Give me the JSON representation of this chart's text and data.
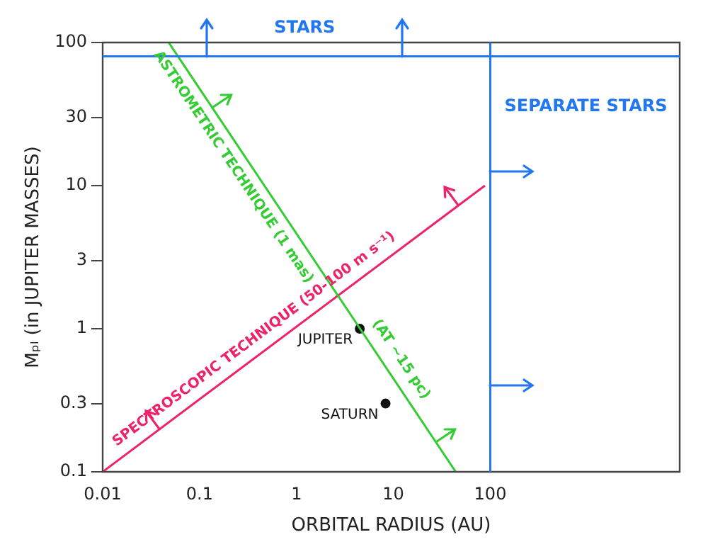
{
  "chart_data": {
    "type": "line",
    "xlabel": "ORBITAL RADIUS (AU)",
    "ylabel": "Mₚₗ (in JUPITER MASSES)",
    "log": "xy",
    "xlim": [
      0.01,
      9000
    ],
    "ylim": [
      0.1,
      100
    ],
    "xticks": [
      0.01,
      0.1,
      1,
      10,
      100
    ],
    "yticks": [
      0.1,
      0.3,
      1,
      3,
      10,
      30,
      100
    ],
    "series": [
      {
        "name": "ASTROMETRIC TECHNIQUE (1 mas)",
        "color": "#33cc33",
        "marker": "none",
        "x": [
          0.048,
          44
        ],
        "values": [
          100,
          0.1
        ]
      },
      {
        "name": "SPECTROSCOPIC TECHNIQUE (50-100 m s⁻¹)",
        "color": "#ee2266",
        "marker": "none",
        "x": [
          0.01,
          88
        ],
        "values": [
          0.1,
          10
        ]
      },
      {
        "name": "JUPITER",
        "type": "scatter",
        "color": "#111111",
        "marker": "circle",
        "x": [
          4.5
        ],
        "values": [
          1
        ]
      },
      {
        "name": "SATURN",
        "type": "scatter",
        "color": "#111111",
        "marker": "circle",
        "x": [
          8.3
        ],
        "values": [
          0.3
        ]
      }
    ],
    "ref_lines": [
      {
        "axis": "y",
        "value": 80,
        "label": "STARS",
        "color": "#2277ee"
      },
      {
        "axis": "x",
        "value": 100,
        "label": "SEPARATE STARS",
        "color": "#2277ee"
      }
    ],
    "annotations": [
      "(AT ~15 pc)"
    ]
  }
}
